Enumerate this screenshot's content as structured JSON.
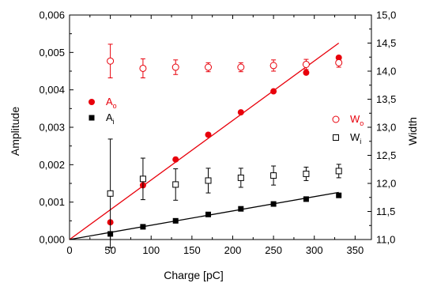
{
  "chart_data": {
    "type": "scatter",
    "title": "",
    "xlabel": "Charge [pC]",
    "ylabel_left": "Amplitude",
    "ylabel_right": "Width",
    "xlim": [
      0,
      370
    ],
    "ylim_left": [
      0,
      0.006
    ],
    "ylim_right": [
      11.0,
      15.0
    ],
    "x_ticks": [
      "0",
      "50",
      "100",
      "150",
      "200",
      "250",
      "300",
      "350"
    ],
    "y_left_ticks": [
      "0,000",
      "0,001",
      "0,002",
      "0,003",
      "0,004",
      "0,005",
      "0,006"
    ],
    "y_right_ticks": [
      "11,0",
      "11,5",
      "12,0",
      "12,5",
      "13,0",
      "13,5",
      "14,0",
      "14,5",
      "15,0"
    ],
    "grid": false,
    "colors": {
      "red": "#e8000b",
      "black": "#000000"
    },
    "legend_left": [
      {
        "base": "A",
        "sub": "o",
        "marker": "filled-circle",
        "color": "#e8000b"
      },
      {
        "base": "A",
        "sub": "i",
        "marker": "filled-square",
        "color": "#000000"
      }
    ],
    "legend_right": [
      {
        "base": "W",
        "sub": "o",
        "marker": "open-circle",
        "color": "#e8000b"
      },
      {
        "base": "W",
        "sub": "i",
        "marker": "open-square",
        "color": "#000000"
      }
    ],
    "series": [
      {
        "axis": "left",
        "marker": "filled-circle",
        "color": "#e8000b",
        "points": [
          [
            50,
            0.00046
          ],
          [
            90,
            0.00145
          ],
          [
            130,
            0.00214
          ],
          [
            170,
            0.0028
          ],
          [
            210,
            0.0034
          ],
          [
            250,
            0.00396
          ],
          [
            290,
            0.00446
          ],
          [
            330,
            0.00486
          ]
        ]
      },
      {
        "axis": "left",
        "marker": "filled-square",
        "color": "#000000",
        "points": [
          [
            50,
            0.00015
          ],
          [
            90,
            0.00034
          ],
          [
            130,
            0.0005
          ],
          [
            170,
            0.00067
          ],
          [
            210,
            0.00082
          ],
          [
            250,
            0.00095
          ],
          [
            290,
            0.00108
          ],
          [
            330,
            0.00118
          ]
        ]
      },
      {
        "axis": "right",
        "marker": "open-circle",
        "color": "#e8000b",
        "points": [
          [
            50,
            14.18
          ],
          [
            90,
            14.05
          ],
          [
            130,
            14.07
          ],
          [
            170,
            14.07
          ],
          [
            210,
            14.07
          ],
          [
            250,
            14.1
          ],
          [
            290,
            14.12
          ],
          [
            330,
            14.15
          ]
        ],
        "errors": [
          0.3,
          0.17,
          0.13,
          0.08,
          0.08,
          0.1,
          0.09,
          0.08
        ]
      },
      {
        "axis": "right",
        "marker": "open-square",
        "color": "#000000",
        "points": [
          [
            50,
            11.82
          ],
          [
            90,
            12.08
          ],
          [
            130,
            11.98
          ],
          [
            170,
            12.05
          ],
          [
            210,
            12.1
          ],
          [
            250,
            12.14
          ],
          [
            290,
            12.17
          ],
          [
            330,
            12.22
          ]
        ],
        "errors": [
          0.97,
          0.37,
          0.28,
          0.22,
          0.17,
          0.17,
          0.12,
          0.12
        ]
      }
    ],
    "fit_lines": [
      {
        "axis": "left",
        "color": "#e8000b",
        "x": [
          0,
          330
        ],
        "y": [
          0,
          0.00525
        ]
      },
      {
        "axis": "left",
        "color": "#000000",
        "x": [
          0,
          330
        ],
        "y": [
          0,
          0.00126
        ]
      }
    ]
  }
}
